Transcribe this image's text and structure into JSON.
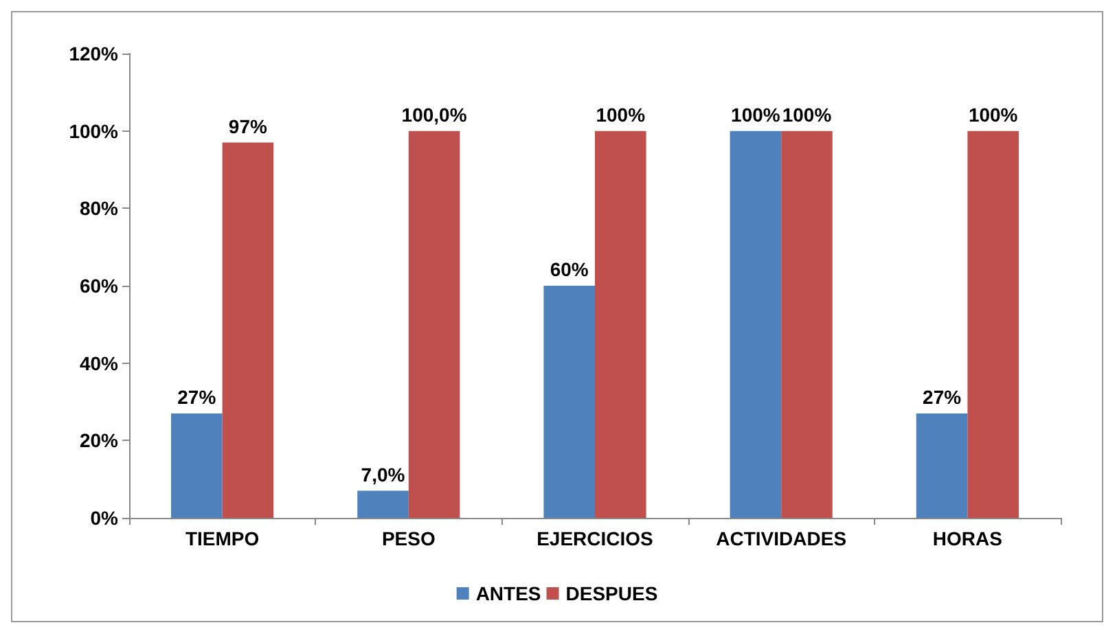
{
  "chart_data": {
    "type": "bar",
    "categories": [
      "TIEMPO",
      "PESO",
      "EJERCICIOS",
      "ACTIVIDADES",
      "HORAS"
    ],
    "series": [
      {
        "name": "ANTES",
        "color": "#4f81bd",
        "values": [
          27,
          7,
          60,
          100,
          27
        ],
        "value_labels": [
          "27%",
          "7,0%",
          "60%",
          "100%",
          "27%"
        ]
      },
      {
        "name": "DESPUES",
        "color": "#c0504d",
        "values": [
          97,
          100,
          100,
          100,
          100
        ],
        "value_labels": [
          "97%",
          "100,0%",
          "100%",
          "100%",
          "100%"
        ]
      }
    ],
    "ylim": [
      0,
      120
    ],
    "yticks": [
      {
        "value": 0,
        "label": "0%"
      },
      {
        "value": 20,
        "label": "20%"
      },
      {
        "value": 40,
        "label": "40%"
      },
      {
        "value": 60,
        "label": "60%"
      },
      {
        "value": 80,
        "label": "80%"
      },
      {
        "value": 100,
        "label": "100%"
      },
      {
        "value": 120,
        "label": "120%"
      }
    ],
    "grid": false,
    "legend": "bottom"
  }
}
